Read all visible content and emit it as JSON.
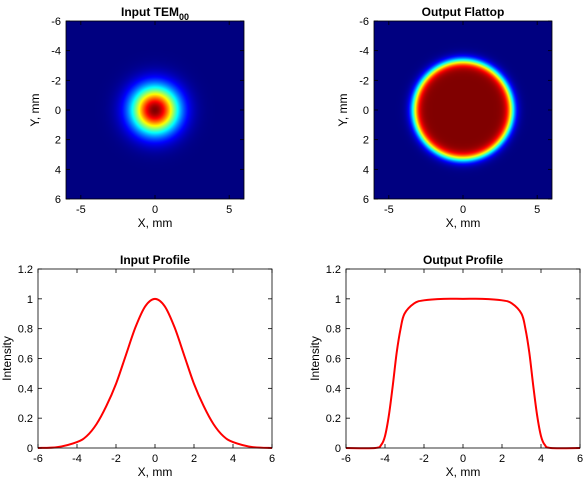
{
  "colors": {
    "curve": "#ff0000",
    "axis": "#000000",
    "colormap": "jet"
  },
  "chart_data": [
    {
      "type": "heatmap",
      "title": "Input TEM",
      "title_subscript": "00",
      "xlabel": "X, mm",
      "ylabel": "Y, mm",
      "xlim": [
        -6,
        6
      ],
      "ylim": [
        6,
        -6
      ],
      "x_ticks": [
        -5,
        0,
        5
      ],
      "y_ticks": [
        -6,
        -4,
        -2,
        0,
        2,
        4,
        6
      ],
      "colormap": "jet",
      "profile": "gaussian",
      "gaussian_1e2_radius_mm": 2.2
    },
    {
      "type": "heatmap",
      "title": "Output Flattop",
      "xlabel": "X, mm",
      "ylabel": "Y, mm",
      "xlim": [
        -6,
        6
      ],
      "ylim": [
        6,
        -6
      ],
      "x_ticks": [
        -5,
        0,
        5
      ],
      "y_ticks": [
        -6,
        -4,
        -2,
        0,
        2,
        4,
        6
      ],
      "colormap": "jet",
      "profile": "flattop",
      "flattop_half_width_mm": 3.3,
      "edge_width_mm": 0.6
    },
    {
      "type": "line",
      "title": "Input Profile",
      "xlabel": "X, mm",
      "ylabel": "Intensity",
      "xlim": [
        -6,
        6
      ],
      "ylim": [
        0,
        1.2
      ],
      "x_ticks": [
        -6,
        -4,
        -2,
        0,
        2,
        4,
        6
      ],
      "y_ticks": [
        0,
        0.2,
        0.4,
        0.6,
        0.8,
        1,
        1.2
      ],
      "x": [
        -6,
        -5,
        -4,
        -3.5,
        -3,
        -2.5,
        -2,
        -1.5,
        -1,
        -0.5,
        0,
        0.5,
        1,
        1.5,
        2,
        2.5,
        3,
        3.5,
        4,
        5,
        6
      ],
      "y": [
        0.0,
        0.006,
        0.04,
        0.08,
        0.16,
        0.28,
        0.43,
        0.62,
        0.81,
        0.95,
        1.0,
        0.95,
        0.81,
        0.62,
        0.43,
        0.28,
        0.16,
        0.08,
        0.04,
        0.006,
        0.0
      ]
    },
    {
      "type": "line",
      "title": "Output Profile",
      "xlabel": "X, mm",
      "ylabel": "Intensity",
      "xlim": [
        -6,
        6
      ],
      "ylim": [
        0,
        1.2
      ],
      "x_ticks": [
        -6,
        -4,
        -2,
        0,
        2,
        4,
        6
      ],
      "y_ticks": [
        0,
        0.2,
        0.4,
        0.6,
        0.8,
        1,
        1.2
      ],
      "x": [
        -6,
        -4.5,
        -4.2,
        -4,
        -3.8,
        -3.6,
        -3.4,
        -3.2,
        -3,
        -2.5,
        -2,
        -1,
        0,
        1,
        2,
        2.5,
        3,
        3.2,
        3.4,
        3.6,
        3.8,
        4,
        4.2,
        4.5,
        6
      ],
      "y": [
        0.0,
        0.0,
        0.02,
        0.08,
        0.22,
        0.42,
        0.64,
        0.8,
        0.9,
        0.97,
        0.99,
        1.0,
        1.0,
        1.0,
        0.99,
        0.97,
        0.9,
        0.8,
        0.64,
        0.42,
        0.22,
        0.08,
        0.02,
        0.0,
        0.0
      ]
    }
  ]
}
